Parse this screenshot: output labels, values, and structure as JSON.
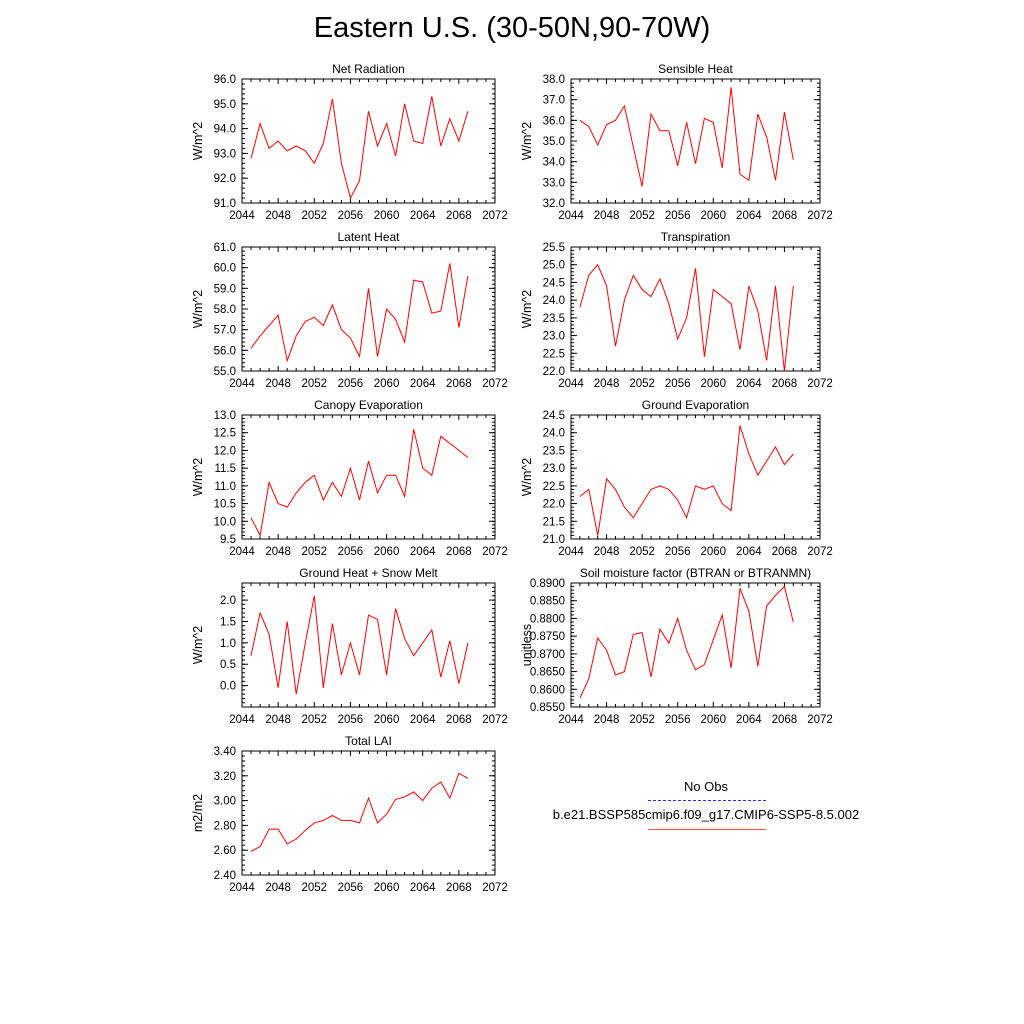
{
  "title": "Eastern U.S. (30-50N,90-70W)",
  "legend": {
    "obs_label": "No Obs",
    "obs_color": "#2b2bff",
    "model_label": "b.e21.BSSP585cmip6.f09_g17.CMIP6-SSP5-8.5.002",
    "model_color": "#ff0000"
  },
  "chart_data": [
    {
      "type": "line",
      "title": "Net Radiation",
      "ylabel": "W/m^2",
      "xlim": [
        2044,
        2072
      ],
      "x_ticks": [
        2044,
        2048,
        2052,
        2056,
        2060,
        2064,
        2068,
        2072
      ],
      "ylim": [
        91.0,
        96.0
      ],
      "y_ticks": [
        "91.0",
        "92.0",
        "93.0",
        "94.0",
        "95.0",
        "96.0"
      ],
      "x": [
        2045,
        2046,
        2047,
        2048,
        2049,
        2050,
        2051,
        2052,
        2053,
        2054,
        2055,
        2056,
        2057,
        2058,
        2059,
        2060,
        2061,
        2062,
        2063,
        2064,
        2065,
        2066,
        2067,
        2068,
        2069
      ],
      "values": [
        92.8,
        94.2,
        93.2,
        93.5,
        93.1,
        93.3,
        93.1,
        92.6,
        93.4,
        95.2,
        92.6,
        91.2,
        91.9,
        94.7,
        93.3,
        94.2,
        92.9,
        95.0,
        93.5,
        93.4,
        95.3,
        93.3,
        94.4,
        93.5,
        94.7
      ]
    },
    {
      "type": "line",
      "title": "Sensible Heat",
      "ylabel": "W/m^2",
      "xlim": [
        2044,
        2072
      ],
      "x_ticks": [
        2044,
        2048,
        2052,
        2056,
        2060,
        2064,
        2068,
        2072
      ],
      "ylim": [
        32.0,
        38.0
      ],
      "y_ticks": [
        "32.0",
        "33.0",
        "34.0",
        "35.0",
        "36.0",
        "37.0",
        "38.0"
      ],
      "x": [
        2045,
        2046,
        2047,
        2048,
        2049,
        2050,
        2051,
        2052,
        2053,
        2054,
        2055,
        2056,
        2057,
        2058,
        2059,
        2060,
        2061,
        2062,
        2063,
        2064,
        2065,
        2066,
        2067,
        2068,
        2069
      ],
      "values": [
        36.0,
        35.7,
        34.8,
        35.8,
        36.0,
        36.7,
        34.7,
        32.8,
        36.3,
        35.5,
        35.5,
        33.8,
        35.9,
        33.9,
        36.1,
        35.9,
        33.7,
        37.6,
        33.4,
        33.1,
        36.3,
        35.2,
        33.1,
        36.4,
        34.1
      ]
    },
    {
      "type": "line",
      "title": "Latent Heat",
      "ylabel": "W/m^2",
      "xlim": [
        2044,
        2072
      ],
      "x_ticks": [
        2044,
        2048,
        2052,
        2056,
        2060,
        2064,
        2068,
        2072
      ],
      "ylim": [
        55.0,
        61.0
      ],
      "y_ticks": [
        "55.0",
        "56.0",
        "57.0",
        "58.0",
        "59.0",
        "60.0",
        "61.0"
      ],
      "x": [
        2045,
        2046,
        2047,
        2048,
        2049,
        2050,
        2051,
        2052,
        2053,
        2054,
        2055,
        2056,
        2057,
        2058,
        2059,
        2060,
        2061,
        2062,
        2063,
        2064,
        2065,
        2066,
        2067,
        2068,
        2069
      ],
      "values": [
        56.1,
        56.7,
        57.2,
        57.7,
        55.5,
        56.7,
        57.4,
        57.6,
        57.2,
        58.2,
        57.0,
        56.6,
        55.7,
        59.0,
        55.7,
        58.0,
        57.5,
        56.4,
        59.4,
        59.3,
        57.8,
        57.9,
        60.2,
        57.1,
        59.6
      ]
    },
    {
      "type": "line",
      "title": "Transpiration",
      "ylabel": "W/m^2",
      "xlim": [
        2044,
        2072
      ],
      "x_ticks": [
        2044,
        2048,
        2052,
        2056,
        2060,
        2064,
        2068,
        2072
      ],
      "ylim": [
        22.0,
        25.5
      ],
      "y_ticks": [
        "22.0",
        "22.5",
        "23.0",
        "23.5",
        "24.0",
        "24.5",
        "25.0",
        "25.5"
      ],
      "x": [
        2045,
        2046,
        2047,
        2048,
        2049,
        2050,
        2051,
        2052,
        2053,
        2054,
        2055,
        2056,
        2057,
        2058,
        2059,
        2060,
        2061,
        2062,
        2063,
        2064,
        2065,
        2066,
        2067,
        2068,
        2069
      ],
      "values": [
        23.8,
        24.7,
        25.0,
        24.4,
        22.7,
        24.0,
        24.7,
        24.3,
        24.1,
        24.6,
        23.9,
        22.9,
        23.5,
        24.9,
        22.4,
        24.3,
        24.1,
        23.9,
        22.6,
        24.4,
        23.7,
        22.3,
        24.4,
        22.0,
        24.4
      ]
    },
    {
      "type": "line",
      "title": "Canopy Evaporation",
      "ylabel": "W/m^2",
      "xlim": [
        2044,
        2072
      ],
      "x_ticks": [
        2044,
        2048,
        2052,
        2056,
        2060,
        2064,
        2068,
        2072
      ],
      "ylim": [
        9.5,
        13.0
      ],
      "y_ticks": [
        "9.5",
        "10.0",
        "10.5",
        "11.0",
        "11.5",
        "12.0",
        "12.5",
        "13.0"
      ],
      "x": [
        2045,
        2046,
        2047,
        2048,
        2049,
        2050,
        2051,
        2052,
        2053,
        2054,
        2055,
        2056,
        2057,
        2058,
        2059,
        2060,
        2061,
        2062,
        2063,
        2064,
        2065,
        2066,
        2067,
        2068,
        2069
      ],
      "values": [
        10.1,
        9.6,
        11.1,
        10.5,
        10.4,
        10.8,
        11.1,
        11.3,
        10.6,
        11.1,
        10.7,
        11.5,
        10.6,
        11.7,
        10.8,
        11.3,
        11.3,
        10.7,
        12.6,
        11.5,
        11.3,
        12.4,
        12.2,
        12.0,
        11.8
      ]
    },
    {
      "type": "line",
      "title": "Ground Evaporation",
      "ylabel": "W/m^2",
      "xlim": [
        2044,
        2072
      ],
      "x_ticks": [
        2044,
        2048,
        2052,
        2056,
        2060,
        2064,
        2068,
        2072
      ],
      "ylim": [
        21.0,
        24.5
      ],
      "y_ticks": [
        "21.0",
        "21.5",
        "22.0",
        "22.5",
        "23.0",
        "23.5",
        "24.0",
        "24.5"
      ],
      "x": [
        2045,
        2046,
        2047,
        2048,
        2049,
        2050,
        2051,
        2052,
        2053,
        2054,
        2055,
        2056,
        2057,
        2058,
        2059,
        2060,
        2061,
        2062,
        2063,
        2064,
        2065,
        2066,
        2067,
        2068,
        2069
      ],
      "values": [
        22.2,
        22.4,
        21.1,
        22.7,
        22.4,
        21.9,
        21.6,
        22.0,
        22.4,
        22.5,
        22.4,
        22.1,
        21.6,
        22.5,
        22.4,
        22.5,
        22.0,
        21.8,
        24.2,
        23.4,
        22.8,
        23.2,
        23.6,
        23.1,
        23.4
      ]
    },
    {
      "type": "line",
      "title": "Ground Heat + Snow Melt",
      "ylabel": "W/m^2",
      "xlim": [
        2044,
        2072
      ],
      "x_ticks": [
        2044,
        2048,
        2052,
        2056,
        2060,
        2064,
        2068,
        2072
      ],
      "ylim": [
        -0.5,
        2.4
      ],
      "y_ticks": [
        "0.0",
        "0.5",
        "1.0",
        "1.5",
        "2.0"
      ],
      "x": [
        2045,
        2046,
        2047,
        2048,
        2049,
        2050,
        2051,
        2052,
        2053,
        2054,
        2055,
        2056,
        2057,
        2058,
        2059,
        2060,
        2061,
        2062,
        2063,
        2064,
        2065,
        2066,
        2067,
        2068,
        2069
      ],
      "values": [
        0.7,
        1.7,
        1.2,
        -0.05,
        1.5,
        -0.2,
        1.0,
        2.1,
        -0.05,
        1.45,
        0.25,
        1.0,
        0.25,
        1.65,
        1.55,
        0.25,
        1.8,
        1.1,
        0.7,
        1.0,
        1.3,
        0.2,
        1.05,
        0.05,
        1.0
      ]
    },
    {
      "type": "line",
      "title": "Soil moisture factor (BTRAN or BTRANMN)",
      "ylabel": "unitless",
      "xlim": [
        2044,
        2072
      ],
      "x_ticks": [
        2044,
        2048,
        2052,
        2056,
        2060,
        2064,
        2068,
        2072
      ],
      "ylim": [
        0.855,
        0.89
      ],
      "y_ticks": [
        "0.8550",
        "0.8600",
        "0.8650",
        "0.8700",
        "0.8750",
        "0.8800",
        "0.8850",
        "0.8900"
      ],
      "x": [
        2045,
        2046,
        2047,
        2048,
        2049,
        2050,
        2051,
        2052,
        2053,
        2054,
        2055,
        2056,
        2057,
        2058,
        2059,
        2060,
        2061,
        2062,
        2063,
        2064,
        2065,
        2066,
        2067,
        2068,
        2069
      ],
      "values": [
        0.8575,
        0.863,
        0.8745,
        0.871,
        0.864,
        0.865,
        0.8755,
        0.876,
        0.8635,
        0.877,
        0.873,
        0.88,
        0.871,
        0.8655,
        0.867,
        0.874,
        0.881,
        0.866,
        0.8885,
        0.882,
        0.8665,
        0.8835,
        0.8865,
        0.889,
        0.879
      ]
    },
    {
      "type": "line",
      "title": "Total LAI",
      "ylabel": "m2/m2",
      "xlim": [
        2044,
        2072
      ],
      "x_ticks": [
        2044,
        2048,
        2052,
        2056,
        2060,
        2064,
        2068,
        2072
      ],
      "ylim": [
        2.4,
        3.4
      ],
      "y_ticks": [
        "2.40",
        "2.60",
        "2.80",
        "3.00",
        "3.20",
        "3.40"
      ],
      "x": [
        2045,
        2046,
        2047,
        2048,
        2049,
        2050,
        2051,
        2052,
        2053,
        2054,
        2055,
        2056,
        2057,
        2058,
        2059,
        2060,
        2061,
        2062,
        2063,
        2064,
        2065,
        2066,
        2067,
        2068,
        2069
      ],
      "values": [
        2.59,
        2.63,
        2.77,
        2.77,
        2.65,
        2.69,
        2.76,
        2.82,
        2.84,
        2.88,
        2.84,
        2.84,
        2.82,
        3.02,
        2.82,
        2.89,
        3.01,
        3.03,
        3.07,
        3.0,
        3.1,
        3.15,
        3.02,
        3.22,
        3.18
      ]
    }
  ]
}
